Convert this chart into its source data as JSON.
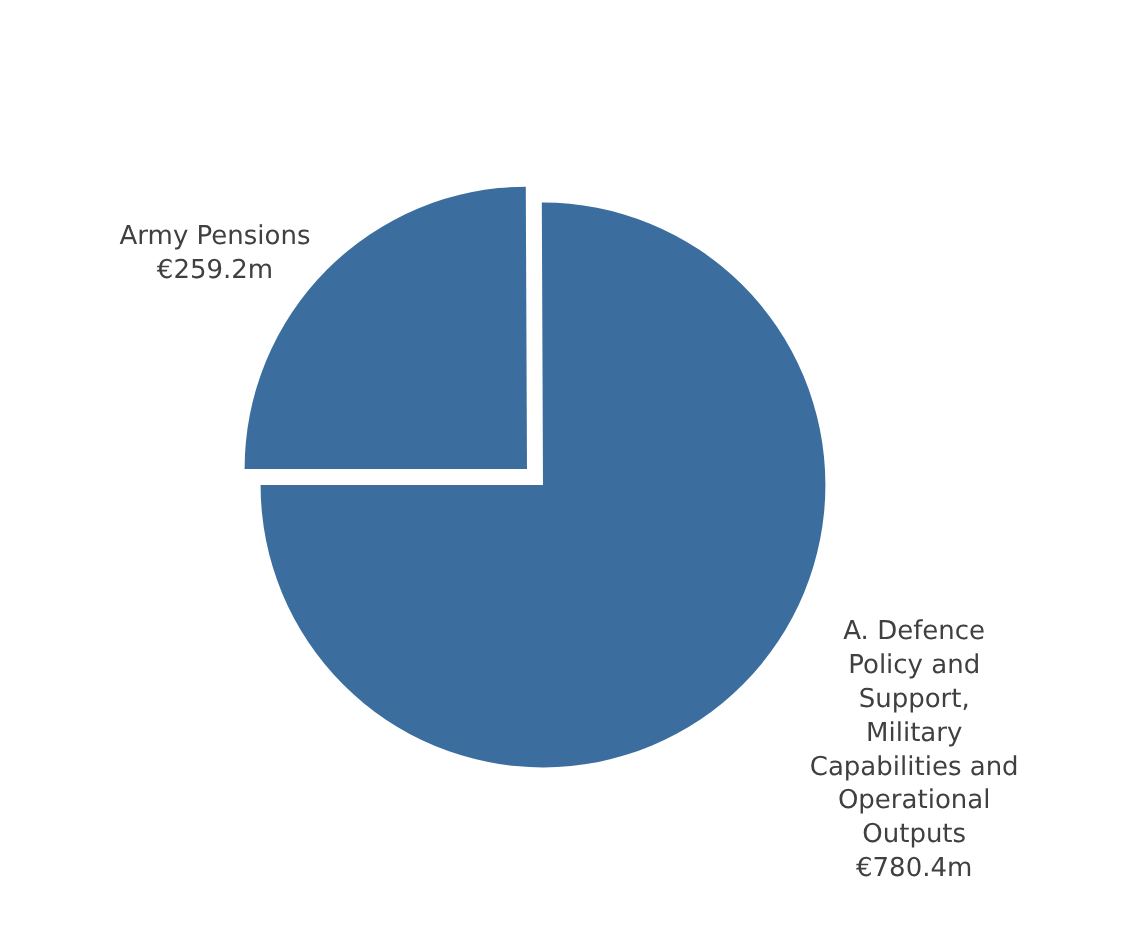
{
  "chart_data": {
    "type": "pie",
    "categories": [
      "Army Pensions",
      "A. Defence Policy and Support, Military Capabilities and Operational Outputs"
    ],
    "values": [
      259.2,
      780.4
    ],
    "value_labels": [
      "€259.2m",
      "€780.4m"
    ],
    "colors": [
      "#3b6e9e",
      "#3b6e9e"
    ],
    "legend": false
  }
}
